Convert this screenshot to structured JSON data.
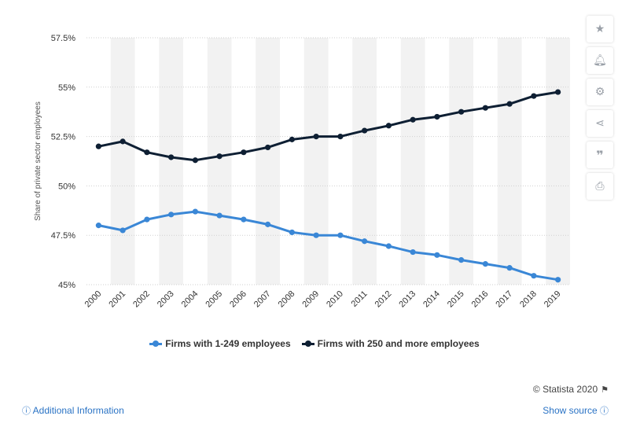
{
  "chart_data": {
    "type": "line",
    "title": "",
    "xlabel": "",
    "ylabel": "Share of private sector employees",
    "categories": [
      "2000",
      "2001",
      "2002",
      "2003",
      "2004",
      "2005",
      "2006",
      "2007",
      "2008",
      "2009",
      "2010",
      "2011",
      "2012",
      "2013",
      "2014",
      "2015",
      "2016",
      "2017",
      "2018",
      "2019"
    ],
    "ylim": [
      45,
      57.5
    ],
    "yticks": [
      "45%",
      "47.5%",
      "50%",
      "52.5%",
      "55%",
      "57.5%"
    ],
    "ytick_values": [
      45,
      47.5,
      50,
      52.5,
      55,
      57.5
    ],
    "grid": true,
    "legend_position": "bottom",
    "series": [
      {
        "name": "Firms with 1-249 employees",
        "color": "#3a87d6",
        "values": [
          48.0,
          47.75,
          48.3,
          48.55,
          48.7,
          48.5,
          48.3,
          48.05,
          47.65,
          47.5,
          47.5,
          47.2,
          46.95,
          46.65,
          46.5,
          46.25,
          46.05,
          45.85,
          45.45,
          45.25
        ]
      },
      {
        "name": "Firms with 250 and more employees",
        "color": "#0e1f33",
        "values": [
          52.0,
          52.25,
          51.7,
          51.45,
          51.3,
          51.5,
          51.7,
          51.95,
          52.35,
          52.5,
          52.5,
          52.8,
          53.05,
          53.35,
          53.5,
          53.75,
          53.95,
          54.15,
          54.55,
          54.75
        ]
      }
    ]
  },
  "footer": {
    "credit": "© Statista 2020",
    "flag_icon": "flag-icon",
    "additional_info": "Additional Information",
    "show_source": "Show source"
  },
  "toolbar": {
    "icons": [
      "star-icon",
      "bell-icon",
      "gear-icon",
      "share-icon",
      "quote-icon",
      "print-icon"
    ]
  }
}
